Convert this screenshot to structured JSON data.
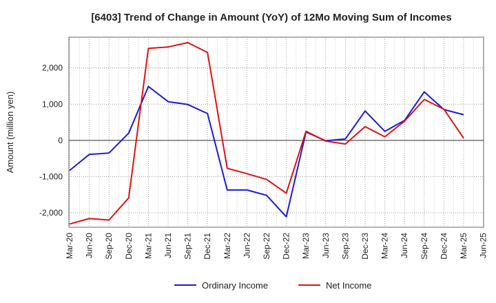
{
  "chart_data": {
    "type": "line",
    "title": "[6403]  Trend of Change in Amount (YoY) of 12Mo Moving Sum of Incomes",
    "xlabel": "",
    "ylabel": "Amount (million yen)",
    "ylim": [
      -2400,
      2850
    ],
    "yticks": [
      -2000,
      -1000,
      0,
      1000,
      2000
    ],
    "ytick_labels": [
      "-2,000",
      "-1,000",
      "0",
      "1,000",
      "2,000"
    ],
    "categories": [
      "Mar-20",
      "Jun-20",
      "Sep-20",
      "Dec-20",
      "Mar-21",
      "Jun-21",
      "Sep-21",
      "Dec-21",
      "Mar-22",
      "Jun-22",
      "Sep-22",
      "Dec-22",
      "Mar-23",
      "Jun-23",
      "Sep-23",
      "Dec-23",
      "Mar-24",
      "Jun-24",
      "Sep-24",
      "Dec-24",
      "Mar-25",
      "Jun-25"
    ],
    "grid": true,
    "legend_position": "bottom",
    "series": [
      {
        "name": "Ordinary Income",
        "color": "#1a1adb",
        "values": [
          -830,
          -390,
          -350,
          200,
          1490,
          1070,
          990,
          740,
          -1370,
          -1370,
          -1520,
          -2110,
          230,
          -10,
          40,
          810,
          250,
          550,
          1340,
          850,
          710,
          null
        ]
      },
      {
        "name": "Net Income",
        "color": "#e01010",
        "values": [
          -2310,
          -2160,
          -2200,
          -1590,
          2540,
          2580,
          2700,
          2430,
          -770,
          -920,
          -1080,
          -1460,
          250,
          -20,
          -100,
          380,
          100,
          530,
          1130,
          860,
          60,
          null
        ]
      }
    ]
  }
}
